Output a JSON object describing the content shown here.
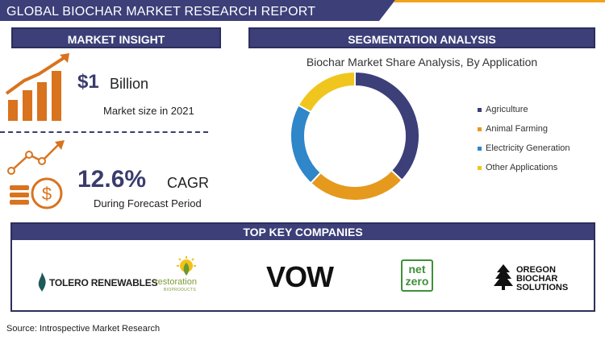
{
  "header": {
    "title": "GLOBAL BIOCHAR MARKET RESEARCH REPORT",
    "colors": {
      "banner": "#3c3f78",
      "accent": "#f2a31b"
    }
  },
  "market_insight": {
    "header": "MARKET INSIGHT",
    "size_value": "$1",
    "size_unit": "Billion",
    "size_caption": "Market size in 2021",
    "cagr_value": "12.6%",
    "cagr_unit": "CAGR",
    "cagr_caption": "During Forecast Period",
    "icon_color": "#d9731e"
  },
  "segmentation": {
    "header": "SEGMENTATION ANALYSIS"
  },
  "chart_data": {
    "type": "pie",
    "title": "Biochar Market Share Analysis, By Application",
    "donut": true,
    "legend_position": "right",
    "categories": [
      "Agriculture",
      "Animal Farming",
      "Electricity Generation",
      "Other Applications"
    ],
    "values": [
      37,
      25,
      21,
      17
    ],
    "colors": [
      "#3c3f78",
      "#e59a1e",
      "#2f86c9",
      "#f0c61e"
    ]
  },
  "companies": {
    "header": "TOP KEY COMPANIES",
    "tolero": "TOLERO RENEWABLES",
    "restoration": "restoration",
    "restoration_sub": "BIOPRODUCTS",
    "vow": "VOW",
    "netzero_1": "net",
    "netzero_2": "zero",
    "oregon_1": "OREGON",
    "oregon_2": "BIOCHAR",
    "oregon_3": "SOLUTIONS"
  },
  "footer": {
    "source": "Source: Introspective Market Research"
  }
}
